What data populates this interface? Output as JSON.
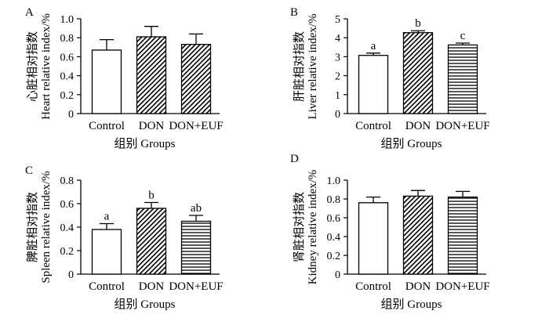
{
  "chart_data": [
    {
      "panel": "A",
      "type": "bar",
      "categories": [
        "Control",
        "DON",
        "DON+EUF"
      ],
      "values": [
        0.67,
        0.81,
        0.73
      ],
      "errors": [
        0.11,
        0.11,
        0.11
      ],
      "significance": [
        "",
        "",
        ""
      ],
      "patterns": [
        "none",
        "diagonal",
        "diagonal"
      ],
      "xlabel": "组别 Groups",
      "ylabel_cn": "心脏相对指数",
      "ylabel_en": "Heart relative index/%",
      "ylim": [
        0,
        1.0
      ],
      "yticks": [
        "0",
        "0.2",
        "0.4",
        "0.6",
        "0.8",
        "1.0"
      ]
    },
    {
      "panel": "B",
      "type": "bar",
      "categories": [
        "Control",
        "DON",
        "DON+EUF"
      ],
      "values": [
        3.07,
        4.27,
        3.62
      ],
      "errors": [
        0.12,
        0.1,
        0.1
      ],
      "significance": [
        "a",
        "b",
        "c"
      ],
      "patterns": [
        "none",
        "diagonal",
        "horizontal"
      ],
      "xlabel": "组别 Groups",
      "ylabel_cn": "肝脏相对指数",
      "ylabel_en": "Liver relative index/%",
      "ylim": [
        0,
        5
      ],
      "yticks": [
        "0",
        "1",
        "2",
        "3",
        "4",
        "5"
      ]
    },
    {
      "panel": "C",
      "type": "bar",
      "categories": [
        "Control",
        "DON",
        "DON+EUF"
      ],
      "values": [
        0.38,
        0.56,
        0.45
      ],
      "errors": [
        0.05,
        0.05,
        0.05
      ],
      "significance": [
        "a",
        "b",
        "ab"
      ],
      "patterns": [
        "none",
        "diagonal",
        "horizontal"
      ],
      "xlabel": "组别 Groups",
      "ylabel_cn": "脾脏相对指数",
      "ylabel_en": "Spleen relative index/%",
      "ylim": [
        0,
        0.8
      ],
      "yticks": [
        "0",
        "0.2",
        "0.4",
        "0.6",
        "0.8"
      ]
    },
    {
      "panel": "D",
      "type": "bar",
      "categories": [
        "Control",
        "DON",
        "DON+EUF"
      ],
      "values": [
        0.76,
        0.83,
        0.82
      ],
      "errors": [
        0.06,
        0.06,
        0.06
      ],
      "significance": [
        "",
        "",
        ""
      ],
      "patterns": [
        "none",
        "diagonal",
        "horizontal"
      ],
      "xlabel": "组别 Groups",
      "ylabel_cn": "肾脏相对指数",
      "ylabel_en": "Kidney relative index/%",
      "ylim": [
        0,
        1.0
      ],
      "yticks": [
        "0",
        "0.2",
        "0.4",
        "0.6",
        "0.8",
        "1.0"
      ]
    }
  ]
}
